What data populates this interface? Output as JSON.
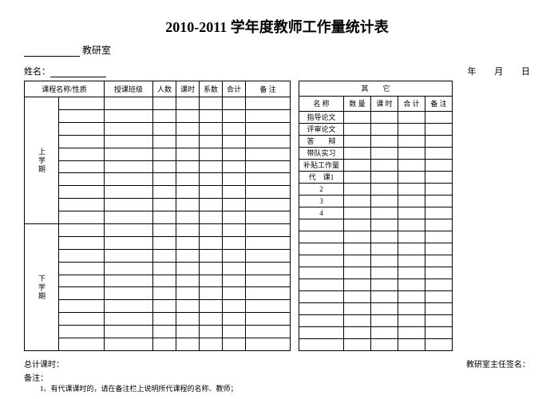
{
  "title": "2010-2011 学年度教师工作量统计表",
  "sub_office": "教研室",
  "name_label": "姓名：",
  "date_year": "年",
  "date_month": "月",
  "date_day": "日",
  "left": {
    "headers": [
      "课程名称/性质",
      "授课班级",
      "人数",
      "课时",
      "系数",
      "合计",
      "备 注"
    ],
    "side1": "上学期",
    "side2": "下学期",
    "rows_per_term": 10
  },
  "right": {
    "group_header": "其　　它",
    "headers": [
      "名 称",
      "数 量",
      "课 时",
      "合 计",
      "备 注"
    ],
    "row_labels": [
      "指导论文",
      "评审论文",
      "答　　辩",
      "带队实习",
      "补贴工作量",
      "代　课1",
      "2",
      "3",
      "4"
    ],
    "blank_rows": 11
  },
  "footer": {
    "total_label": "总计课时：",
    "sign_label": "教研室主任签名：",
    "remarks_label": "备注：",
    "note1": "1、有代课课时的，请在备注栏上说明所代课程的名称、教师；"
  }
}
